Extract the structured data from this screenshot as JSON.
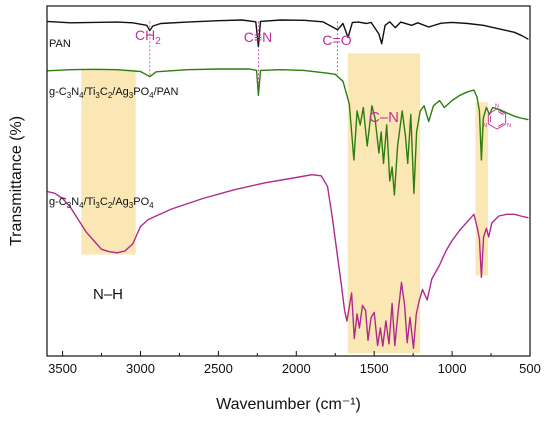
{
  "chart_data": {
    "type": "line",
    "title": "",
    "xlabel": "Wavenumber (cm⁻¹)",
    "ylabel": "Transmittance (%)",
    "xlim": [
      3600,
      500
    ],
    "x_reversed": true,
    "ylim": [
      0,
      100
    ],
    "x_ticks": [
      "3500",
      "3000",
      "2500",
      "2000",
      "1500",
      "1000",
      "500"
    ],
    "x_tick_values": [
      3500,
      3000,
      2500,
      2000,
      1500,
      1000,
      500
    ],
    "grid": false,
    "colors": {
      "PAN": "#111111",
      "g-C3N4/Ti3C2/Ag3PO4/PAN": "#2e7d0f",
      "g-C3N4/Ti3C2/Ag3PO4": "#b02a8c",
      "annotation": "#c0309a",
      "highlight": "#fbe7b3"
    },
    "series": [
      {
        "name": "PAN",
        "label_parts": [
          [
            "PAN",
            ""
          ]
        ],
        "points": [
          [
            3600,
            95.6
          ],
          [
            3450,
            95.2
          ],
          [
            3300,
            95.3
          ],
          [
            3150,
            95.4
          ],
          [
            3050,
            95.2
          ],
          [
            2960,
            94.5
          ],
          [
            2940,
            93.0
          ],
          [
            2920,
            94.3
          ],
          [
            2870,
            95.0
          ],
          [
            2700,
            95.4
          ],
          [
            2500,
            95.8
          ],
          [
            2350,
            96.0
          ],
          [
            2260,
            95.5
          ],
          [
            2243,
            88.5
          ],
          [
            2230,
            95.6
          ],
          [
            2100,
            96.0
          ],
          [
            1950,
            95.9
          ],
          [
            1830,
            95.5
          ],
          [
            1735,
            93.2
          ],
          [
            1700,
            95.0
          ],
          [
            1668,
            91.0
          ],
          [
            1640,
            95.3
          ],
          [
            1600,
            95.4
          ],
          [
            1550,
            95.0
          ],
          [
            1520,
            95.3
          ],
          [
            1470,
            92.0
          ],
          [
            1452,
            89.2
          ],
          [
            1430,
            94.5
          ],
          [
            1400,
            95.5
          ],
          [
            1365,
            93.8
          ],
          [
            1330,
            95.4
          ],
          [
            1260,
            94.5
          ],
          [
            1220,
            95.2
          ],
          [
            1150,
            94.0
          ],
          [
            1070,
            95.1
          ],
          [
            1000,
            95.3
          ],
          [
            900,
            95.0
          ],
          [
            800,
            94.5
          ],
          [
            700,
            93.5
          ],
          [
            600,
            92.5
          ],
          [
            550,
            91.5
          ],
          [
            510,
            90.5
          ]
        ]
      },
      {
        "name": "g-C3N4/Ti3C2/Ag3PO4/PAN",
        "label_parts": [
          [
            "g-C",
            ""
          ],
          [
            "3",
            "sub"
          ],
          [
            "N",
            ""
          ],
          [
            "4",
            "sub"
          ],
          [
            "/Ti",
            ""
          ],
          [
            "3",
            "sub"
          ],
          [
            "C",
            ""
          ],
          [
            "2",
            "sub"
          ],
          [
            "/Ag",
            ""
          ],
          [
            "3",
            "sub"
          ],
          [
            "PO",
            ""
          ],
          [
            "4",
            "sub"
          ],
          [
            "/PAN",
            ""
          ]
        ],
        "points": [
          [
            3600,
            81.5
          ],
          [
            3450,
            81.8
          ],
          [
            3300,
            81.9
          ],
          [
            3150,
            81.8
          ],
          [
            3000,
            81.3
          ],
          [
            2940,
            79.8
          ],
          [
            2900,
            81.2
          ],
          [
            2700,
            81.8
          ],
          [
            2500,
            82.0
          ],
          [
            2300,
            82.0
          ],
          [
            2255,
            81.6
          ],
          [
            2243,
            74.5
          ],
          [
            2230,
            81.6
          ],
          [
            2100,
            81.8
          ],
          [
            1950,
            81.6
          ],
          [
            1800,
            80.8
          ],
          [
            1750,
            80.5
          ],
          [
            1700,
            78.5
          ],
          [
            1660,
            72.0
          ],
          [
            1630,
            56.0
          ],
          [
            1610,
            70.0
          ],
          [
            1590,
            66.0
          ],
          [
            1570,
            71.0
          ],
          [
            1545,
            60.0
          ],
          [
            1515,
            71.5
          ],
          [
            1495,
            68.0
          ],
          [
            1470,
            58.0
          ],
          [
            1455,
            64.0
          ],
          [
            1440,
            55.0
          ],
          [
            1420,
            66.0
          ],
          [
            1400,
            50.0
          ],
          [
            1385,
            54.0
          ],
          [
            1370,
            46.0
          ],
          [
            1350,
            60.0
          ],
          [
            1320,
            70.0
          ],
          [
            1300,
            63.0
          ],
          [
            1285,
            55.0
          ],
          [
            1265,
            69.0
          ],
          [
            1245,
            46.5
          ],
          [
            1228,
            64.0
          ],
          [
            1205,
            70.0
          ],
          [
            1180,
            71.5
          ],
          [
            1150,
            67.0
          ],
          [
            1120,
            71.5
          ],
          [
            1080,
            73.0
          ],
          [
            1050,
            71.0
          ],
          [
            1000,
            73.0
          ],
          [
            950,
            74.5
          ],
          [
            900,
            75.5
          ],
          [
            860,
            76.0
          ],
          [
            840,
            74.0
          ],
          [
            825,
            70.0
          ],
          [
            812,
            56.0
          ],
          [
            800,
            68.0
          ],
          [
            780,
            71.0
          ],
          [
            760,
            69.0
          ],
          [
            740,
            71.0
          ],
          [
            700,
            70.5
          ],
          [
            650,
            69.5
          ],
          [
            600,
            68.5
          ],
          [
            560,
            68.0
          ],
          [
            510,
            67.5
          ]
        ]
      },
      {
        "name": "g-C3N4/Ti3C2/Ag3PO4",
        "label_parts": [
          [
            "g-C",
            ""
          ],
          [
            "3",
            "sub"
          ],
          [
            "N",
            ""
          ],
          [
            "4",
            "sub"
          ],
          [
            "/Ti",
            ""
          ],
          [
            "3",
            "sub"
          ],
          [
            "C",
            ""
          ],
          [
            "2",
            "sub"
          ],
          [
            "/Ag",
            ""
          ],
          [
            "3",
            "sub"
          ],
          [
            "PO",
            ""
          ],
          [
            "4",
            "sub"
          ]
        ],
        "points": [
          [
            3600,
            47.0
          ],
          [
            3550,
            46.5
          ],
          [
            3500,
            45.0
          ],
          [
            3450,
            42.5
          ],
          [
            3400,
            39.0
          ],
          [
            3350,
            35.5
          ],
          [
            3300,
            33.0
          ],
          [
            3250,
            30.5
          ],
          [
            3200,
            29.8
          ],
          [
            3150,
            29.5
          ],
          [
            3100,
            30.0
          ],
          [
            3050,
            32.0
          ],
          [
            3000,
            37.0
          ],
          [
            2950,
            39.0
          ],
          [
            2800,
            42.0
          ],
          [
            2600,
            45.0
          ],
          [
            2400,
            47.5
          ],
          [
            2200,
            49.5
          ],
          [
            2000,
            51.0
          ],
          [
            1900,
            51.8
          ],
          [
            1840,
            51.5
          ],
          [
            1800,
            48.5
          ],
          [
            1770,
            40.0
          ],
          [
            1740,
            30.0
          ],
          [
            1710,
            20.0
          ],
          [
            1690,
            13.0
          ],
          [
            1675,
            10.0
          ],
          [
            1660,
            14.0
          ],
          [
            1645,
            18.0
          ],
          [
            1628,
            5.0
          ],
          [
            1610,
            12.0
          ],
          [
            1595,
            8.0
          ],
          [
            1575,
            14.5
          ],
          [
            1555,
            13.0
          ],
          [
            1540,
            4.5
          ],
          [
            1520,
            11.0
          ],
          [
            1500,
            12.5
          ],
          [
            1478,
            3.0
          ],
          [
            1460,
            8.0
          ],
          [
            1445,
            2.8
          ],
          [
            1425,
            10.0
          ],
          [
            1405,
            3.5
          ],
          [
            1385,
            15.0
          ],
          [
            1368,
            3.0
          ],
          [
            1348,
            12.0
          ],
          [
            1325,
            21.0
          ],
          [
            1305,
            14.5
          ],
          [
            1288,
            3.8
          ],
          [
            1270,
            11.0
          ],
          [
            1248,
            2.2
          ],
          [
            1230,
            12.0
          ],
          [
            1210,
            16.0
          ],
          [
            1190,
            19.0
          ],
          [
            1160,
            16.0
          ],
          [
            1130,
            22.0
          ],
          [
            1080,
            26.0
          ],
          [
            1040,
            30.0
          ],
          [
            1000,
            33.0
          ],
          [
            950,
            36.0
          ],
          [
            900,
            38.5
          ],
          [
            860,
            40.5
          ],
          [
            840,
            37.0
          ],
          [
            825,
            33.5
          ],
          [
            812,
            22.5
          ],
          [
            798,
            34.0
          ],
          [
            780,
            36.5
          ],
          [
            765,
            34.0
          ],
          [
            745,
            38.0
          ],
          [
            700,
            40.0
          ],
          [
            650,
            40.5
          ],
          [
            600,
            40.5
          ],
          [
            560,
            40.0
          ],
          [
            510,
            39.5
          ]
        ]
      }
    ],
    "highlight_bands": [
      {
        "name": "N–H",
        "x1": 3380,
        "x2": 3030,
        "y1": 29.0,
        "y2": 81.8
      },
      {
        "name": "C–N",
        "x1": 1670,
        "x2": 1205,
        "y1": 0.8,
        "y2": 86.5
      },
      {
        "name": "triazine",
        "x1": 850,
        "x2": 770,
        "y1": 23.0,
        "y2": 72.5
      }
    ],
    "peak_markers": [
      {
        "label": "CH2",
        "x": 2940,
        "y_top": 95.6,
        "y_bottom": 79.8
      },
      {
        "label": "C≡N",
        "x": 2243,
        "y_top": 95.6,
        "y_bottom": 74.5
      },
      {
        "label": "C=O",
        "x": 1735,
        "y_top": 95.6,
        "y_bottom": 80.5
      }
    ],
    "annotations": {
      "nh": "N–H",
      "cn": "C–N",
      "ch2_main": "CH",
      "ch2_sub": "2",
      "cyano": "C≡N",
      "carbonyl": "C=O"
    },
    "icon": "triazine-ring-icon"
  }
}
